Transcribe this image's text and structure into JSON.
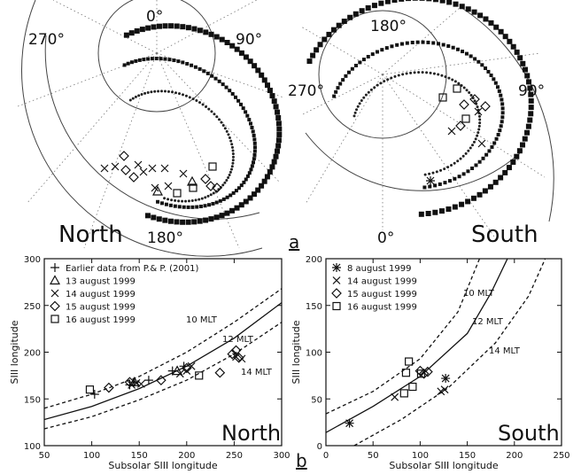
{
  "panel_a": {
    "north": {
      "hemisphere_label": "North",
      "lon_labels": {
        "top": "0°",
        "left": "270°",
        "right": "90°",
        "bottom": "180°"
      }
    },
    "south": {
      "hemisphere_label": "South",
      "lon_labels": {
        "top": "180°",
        "left": "270°",
        "right": "90°",
        "bottom": "0°"
      }
    },
    "panel_label": "a"
  },
  "panel_b": {
    "panel_label": "b"
  },
  "chart_data": [
    {
      "type": "scatter",
      "title": "North",
      "xlabel": "Subsolar SIII longitude",
      "ylabel": "SIII longitude",
      "xlim": [
        50,
        300
      ],
      "ylim": [
        100,
        300
      ],
      "xticks": [
        50,
        100,
        150,
        200,
        250,
        300
      ],
      "yticks": [
        100,
        150,
        200,
        250,
        300
      ],
      "grid": false,
      "legend_position": "top-left",
      "series": [
        {
          "name": "Earlier data from P.& P. (2001)",
          "marker": "plus4",
          "points": [
            [
              103,
              155
            ],
            [
              140,
              165
            ],
            [
              145,
              168
            ],
            [
              160,
              170
            ],
            [
              185,
              180
            ],
            [
              197,
              185
            ]
          ]
        },
        {
          "name": "13 august 1999",
          "marker": "triangle",
          "points": [
            [
              145,
              168
            ],
            [
              190,
              180
            ]
          ]
        },
        {
          "name": "14 august 1999",
          "marker": "x",
          "points": [
            [
              142,
              165
            ],
            [
              147,
              167
            ],
            [
              152,
              166
            ],
            [
              193,
              177
            ],
            [
              200,
              180
            ],
            [
              205,
              185
            ],
            [
              252,
              195
            ],
            [
              258,
              193
            ]
          ]
        },
        {
          "name": "15 august 1999",
          "marker": "diamond",
          "points": [
            [
              118,
              162
            ],
            [
              140,
              168
            ],
            [
              173,
              170
            ],
            [
              200,
              183
            ],
            [
              235,
              178
            ],
            [
              248,
              198
            ],
            [
              252,
              202
            ],
            [
              255,
              194
            ]
          ]
        },
        {
          "name": "16 august 1999",
          "marker": "square",
          "points": [
            [
              98,
              160
            ],
            [
              213,
              175
            ]
          ]
        }
      ],
      "curves": [
        {
          "role": "solid",
          "points": [
            [
              50,
              128
            ],
            [
              100,
              142
            ],
            [
              150,
              161
            ],
            [
              200,
              185
            ],
            [
              250,
              215
            ],
            [
              300,
              253
            ]
          ]
        },
        {
          "role": "dashed_upper",
          "label": "10 MLT",
          "points": [
            [
              50,
              140
            ],
            [
              100,
              155
            ],
            [
              150,
              174
            ],
            [
              200,
              200
            ],
            [
              250,
              232
            ],
            [
              300,
              268
            ]
          ]
        },
        {
          "role": "dashed_middle_label",
          "label": "12 MLT"
        },
        {
          "role": "dashed_lower",
          "label": "14 MLT",
          "points": [
            [
              50,
              118
            ],
            [
              100,
              131
            ],
            [
              150,
              149
            ],
            [
              200,
              170
            ],
            [
              250,
              198
            ],
            [
              300,
              232
            ]
          ]
        }
      ]
    },
    {
      "type": "scatter",
      "title": "South",
      "xlabel": "Subsolar SIII longitude",
      "ylabel": "SIII longitude",
      "xlim": [
        0,
        250
      ],
      "ylim": [
        0,
        200
      ],
      "xticks": [
        0,
        50,
        100,
        150,
        200,
        250
      ],
      "yticks": [
        0,
        50,
        100,
        150,
        200
      ],
      "grid": false,
      "legend_position": "top-left",
      "series": [
        {
          "name": "8 august 1999",
          "marker": "asterisk",
          "points": [
            [
              25,
              24
            ],
            [
              127,
              72
            ]
          ]
        },
        {
          "name": "14 august 1999",
          "marker": "x",
          "points": [
            [
              73,
              52
            ],
            [
              122,
              58
            ],
            [
              126,
              60
            ]
          ]
        },
        {
          "name": "15 august 1999",
          "marker": "diamond",
          "points": [
            [
              100,
              80
            ],
            [
              104,
              77
            ],
            [
              108,
              79
            ]
          ]
        },
        {
          "name": "16 august 1999",
          "marker": "square",
          "points": [
            [
              83,
              56
            ],
            [
              85,
              78
            ],
            [
              88,
              90
            ],
            [
              92,
              63
            ],
            [
              101,
              77
            ]
          ]
        }
      ],
      "curves": [
        {
          "role": "solid",
          "points": [
            [
              0,
              14
            ],
            [
              50,
              42
            ],
            [
              100,
              74
            ],
            [
              150,
              120
            ],
            [
              175,
              163
            ],
            [
              195,
              205
            ]
          ]
        },
        {
          "role": "dashed_upper",
          "label": "10 MLT",
          "points": [
            [
              0,
              34
            ],
            [
              50,
              58
            ],
            [
              100,
              93
            ],
            [
              140,
              143
            ],
            [
              165,
              205
            ]
          ]
        },
        {
          "role": "dashed_middle_label",
          "label": "12 MLT"
        },
        {
          "role": "dashed_lower",
          "label": "14 MLT",
          "points": [
            [
              30,
              0
            ],
            [
              80,
              28
            ],
            [
              130,
              62
            ],
            [
              180,
              110
            ],
            [
              215,
              160
            ],
            [
              235,
              205
            ]
          ]
        }
      ]
    }
  ]
}
